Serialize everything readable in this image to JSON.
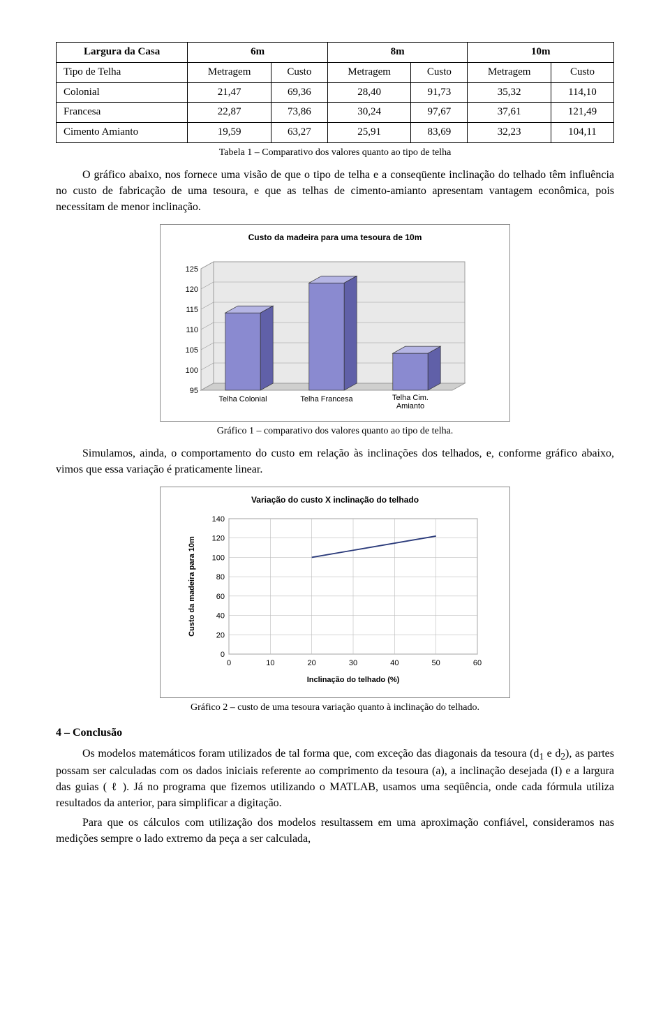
{
  "table": {
    "header_row1": [
      "Largura da Casa",
      "6m",
      "8m",
      "10m"
    ],
    "header_row2": [
      "Tipo de Telha",
      "Metragem",
      "Custo",
      "Metragem",
      "Custo",
      "Metragem",
      "Custo"
    ],
    "rows": [
      [
        "Colonial",
        "21,47",
        "69,36",
        "28,40",
        "91,73",
        "35,32",
        "114,10"
      ],
      [
        "Francesa",
        "22,87",
        "73,86",
        "30,24",
        "97,67",
        "37,61",
        "121,49"
      ],
      [
        "Cimento Amianto",
        "19,59",
        "63,27",
        "25,91",
        "83,69",
        "32,23",
        "104,11"
      ]
    ],
    "caption": "Tabela 1 – Comparativo dos valores quanto ao tipo de telha"
  },
  "para1": "O gráfico abaixo, nos fornece uma visão de que o tipo de telha e a conseqüente inclinação do telhado têm influência no custo de fabricação de uma tesoura, e que as telhas de cimento-amianto apresentam vantagem econômica, pois necessitam de menor inclinação.",
  "chart1": {
    "type": "bar3d",
    "title": "Custo da madeira para uma tesoura de 10m",
    "categories": [
      "Telha Colonial",
      "Telha Francesa",
      "Telha Cim. Amianto"
    ],
    "values": [
      114.1,
      121.49,
      104.11
    ],
    "ylim": [
      95,
      125
    ],
    "ytick_step": 5,
    "bar_face": "#8a8ad0",
    "bar_top": "#b5b5e4",
    "bar_side": "#6060a8",
    "floor": "#cfcfce",
    "wall": "#e9e9e9",
    "grid": "#9a9a9a",
    "caption": "Gráfico 1 – comparativo dos valores quanto ao tipo de telha."
  },
  "para2": "Simulamos, ainda, o comportamento do custo em relação às inclinações dos telhados, e, conforme gráfico abaixo, vimos que essa variação é praticamente linear.",
  "chart2": {
    "type": "line",
    "title": "Variação do custo X inclinação do telhado",
    "xlabel": "Inclinação do telhado (%)",
    "ylabel": "Custo da madeira para 10m",
    "xlim": [
      0,
      60
    ],
    "xtick_step": 10,
    "ylim": [
      0,
      140
    ],
    "ytick_step": 20,
    "points": [
      [
        20,
        100
      ],
      [
        50,
        122
      ]
    ],
    "line_color": "#2a3a7a",
    "grid": "#bcbcbc",
    "caption": "Gráfico 2 – custo de uma tesoura variação quanto à inclinação do telhado."
  },
  "section_heading": "4 – Conclusão",
  "para3_before": "Os modelos matemáticos foram utilizados de tal forma que, com exceção das diagonais da tesoura (d",
  "para3_sub1": "1",
  "para3_mid1": " e d",
  "para3_sub2": "2",
  "para3_mid2": "), as partes possam ser calculadas com os dados iniciais referente ao comprimento da tesoura (a), a inclinação desejada (I) e a largura das guias ( ",
  "para3_ell": "ℓ",
  "para3_after": " ). Já no programa que fizemos utilizando o MATLAB, usamos uma seqüência, onde cada fórmula utiliza resultados da anterior, para simplificar a digitação.",
  "para4": "Para que os cálculos com utilização dos modelos resultassem em uma aproximação confiável, consideramos nas medições sempre o lado extremo da peça a ser calculada,"
}
